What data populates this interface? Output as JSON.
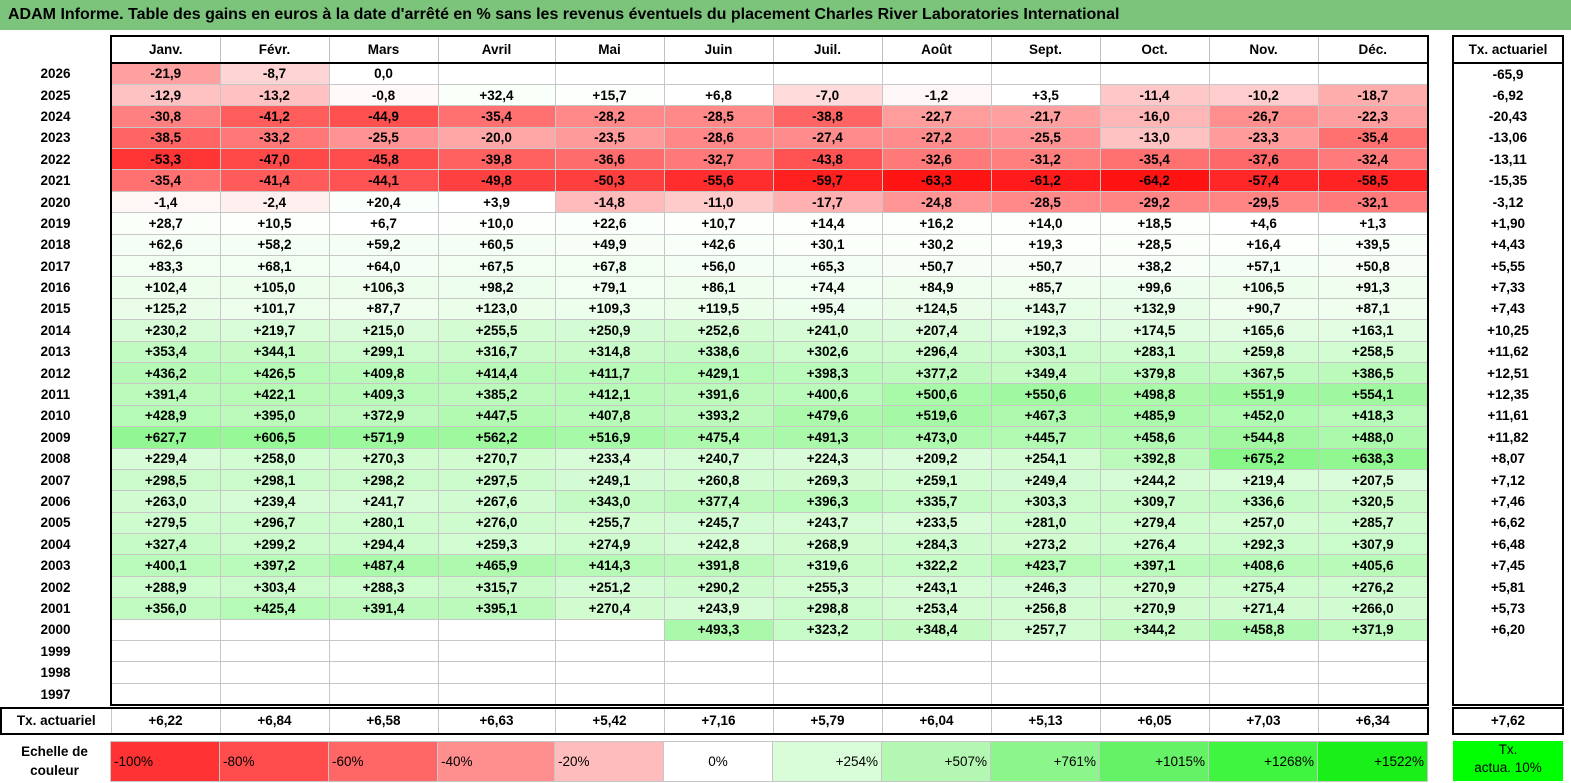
{
  "title": "ADAM Informe. Table des gains en euros à la date d'arrêté en % sans les revenus éventuels du placement Charles River Laboratories International",
  "months": [
    "Janv.",
    "Févr.",
    "Mars",
    "Avril",
    "Mai",
    "Juin",
    "Juil.",
    "Août",
    "Sept.",
    "Oct.",
    "Nov.",
    "Déc."
  ],
  "rate_header": "Tx. actuariel",
  "rows": [
    {
      "year": "2026",
      "values": [
        "-21,9",
        "-8,7",
        "0,0",
        "",
        "",
        "",
        "",
        "",
        "",
        "",
        "",
        ""
      ],
      "rate": "-65,9"
    },
    {
      "year": "2025",
      "values": [
        "-12,9",
        "-13,2",
        "-0,8",
        "+32,4",
        "+15,7",
        "+6,8",
        "-7,0",
        "-1,2",
        "+3,5",
        "-11,4",
        "-10,2",
        "-18,7"
      ],
      "rate": "-6,92"
    },
    {
      "year": "2024",
      "values": [
        "-30,8",
        "-41,2",
        "-44,9",
        "-35,4",
        "-28,2",
        "-28,5",
        "-38,8",
        "-22,7",
        "-21,7",
        "-16,0",
        "-26,7",
        "-22,3"
      ],
      "rate": "-20,43"
    },
    {
      "year": "2023",
      "values": [
        "-38,5",
        "-33,2",
        "-25,5",
        "-20,0",
        "-23,5",
        "-28,6",
        "-27,4",
        "-27,2",
        "-25,5",
        "-13,0",
        "-23,3",
        "-35,4"
      ],
      "rate": "-13,06"
    },
    {
      "year": "2022",
      "values": [
        "-53,3",
        "-47,0",
        "-45,8",
        "-39,8",
        "-36,6",
        "-32,7",
        "-43,8",
        "-32,6",
        "-31,2",
        "-35,4",
        "-37,6",
        "-32,4"
      ],
      "rate": "-13,11"
    },
    {
      "year": "2021",
      "values": [
        "-35,4",
        "-41,4",
        "-44,1",
        "-49,8",
        "-50,3",
        "-55,6",
        "-59,7",
        "-63,3",
        "-61,2",
        "-64,2",
        "-57,4",
        "-58,5"
      ],
      "rate": "-15,35"
    },
    {
      "year": "2020",
      "values": [
        "-1,4",
        "-2,4",
        "+20,4",
        "+3,9",
        "-14,8",
        "-11,0",
        "-17,7",
        "-24,8",
        "-28,5",
        "-29,2",
        "-29,5",
        "-32,1"
      ],
      "rate": "-3,12"
    },
    {
      "year": "2019",
      "values": [
        "+28,7",
        "+10,5",
        "+6,7",
        "+10,0",
        "+22,6",
        "+10,7",
        "+14,4",
        "+16,2",
        "+14,0",
        "+18,5",
        "+4,6",
        "+1,3"
      ],
      "rate": "+1,90"
    },
    {
      "year": "2018",
      "values": [
        "+62,6",
        "+58,2",
        "+59,2",
        "+60,5",
        "+49,9",
        "+42,6",
        "+30,1",
        "+30,2",
        "+19,3",
        "+28,5",
        "+16,4",
        "+39,5"
      ],
      "rate": "+4,43"
    },
    {
      "year": "2017",
      "values": [
        "+83,3",
        "+68,1",
        "+64,0",
        "+67,5",
        "+67,8",
        "+56,0",
        "+65,3",
        "+50,7",
        "+50,7",
        "+38,2",
        "+57,1",
        "+50,8"
      ],
      "rate": "+5,55"
    },
    {
      "year": "2016",
      "values": [
        "+102,4",
        "+105,0",
        "+106,3",
        "+98,2",
        "+79,1",
        "+86,1",
        "+74,4",
        "+84,9",
        "+85,7",
        "+99,6",
        "+106,5",
        "+91,3"
      ],
      "rate": "+7,33"
    },
    {
      "year": "2015",
      "values": [
        "+125,2",
        "+101,7",
        "+87,7",
        "+123,0",
        "+109,3",
        "+119,5",
        "+95,4",
        "+124,5",
        "+143,7",
        "+132,9",
        "+90,7",
        "+87,1"
      ],
      "rate": "+7,43"
    },
    {
      "year": "2014",
      "values": [
        "+230,2",
        "+219,7",
        "+215,0",
        "+255,5",
        "+250,9",
        "+252,6",
        "+241,0",
        "+207,4",
        "+192,3",
        "+174,5",
        "+165,6",
        "+163,1"
      ],
      "rate": "+10,25"
    },
    {
      "year": "2013",
      "values": [
        "+353,4",
        "+344,1",
        "+299,1",
        "+316,7",
        "+314,8",
        "+338,6",
        "+302,6",
        "+296,4",
        "+303,1",
        "+283,1",
        "+259,8",
        "+258,5"
      ],
      "rate": "+11,62"
    },
    {
      "year": "2012",
      "values": [
        "+436,2",
        "+426,5",
        "+409,8",
        "+414,4",
        "+411,7",
        "+429,1",
        "+398,3",
        "+377,2",
        "+349,4",
        "+379,8",
        "+367,5",
        "+386,5"
      ],
      "rate": "+12,51"
    },
    {
      "year": "2011",
      "values": [
        "+391,4",
        "+422,1",
        "+409,3",
        "+385,2",
        "+412,1",
        "+391,6",
        "+400,6",
        "+500,6",
        "+550,6",
        "+498,8",
        "+551,9",
        "+554,1"
      ],
      "rate": "+12,35"
    },
    {
      "year": "2010",
      "values": [
        "+428,9",
        "+395,0",
        "+372,9",
        "+447,5",
        "+407,8",
        "+393,2",
        "+479,6",
        "+519,6",
        "+467,3",
        "+485,9",
        "+452,0",
        "+418,3"
      ],
      "rate": "+11,61"
    },
    {
      "year": "2009",
      "values": [
        "+627,7",
        "+606,5",
        "+571,9",
        "+562,2",
        "+516,9",
        "+475,4",
        "+491,3",
        "+473,0",
        "+445,7",
        "+458,6",
        "+544,8",
        "+488,0"
      ],
      "rate": "+11,82"
    },
    {
      "year": "2008",
      "values": [
        "+229,4",
        "+258,0",
        "+270,3",
        "+270,7",
        "+233,4",
        "+240,7",
        "+224,3",
        "+209,2",
        "+254,1",
        "+392,8",
        "+675,2",
        "+638,3"
      ],
      "rate": "+8,07"
    },
    {
      "year": "2007",
      "values": [
        "+298,5",
        "+298,1",
        "+298,2",
        "+297,5",
        "+249,1",
        "+260,8",
        "+269,3",
        "+259,1",
        "+249,4",
        "+244,2",
        "+219,4",
        "+207,5"
      ],
      "rate": "+7,12"
    },
    {
      "year": "2006",
      "values": [
        "+263,0",
        "+239,4",
        "+241,7",
        "+267,6",
        "+343,0",
        "+377,4",
        "+396,3",
        "+335,7",
        "+303,3",
        "+309,7",
        "+336,6",
        "+320,5"
      ],
      "rate": "+7,46"
    },
    {
      "year": "2005",
      "values": [
        "+279,5",
        "+296,7",
        "+280,1",
        "+276,0",
        "+255,7",
        "+245,7",
        "+243,7",
        "+233,5",
        "+281,0",
        "+279,4",
        "+257,0",
        "+285,7"
      ],
      "rate": "+6,62"
    },
    {
      "year": "2004",
      "values": [
        "+327,4",
        "+299,2",
        "+294,4",
        "+259,3",
        "+274,9",
        "+242,8",
        "+268,9",
        "+284,3",
        "+273,2",
        "+276,4",
        "+292,3",
        "+307,9"
      ],
      "rate": "+6,48"
    },
    {
      "year": "2003",
      "values": [
        "+400,1",
        "+397,2",
        "+487,4",
        "+465,9",
        "+414,3",
        "+391,8",
        "+319,6",
        "+322,2",
        "+423,7",
        "+397,1",
        "+408,6",
        "+405,6"
      ],
      "rate": "+7,45"
    },
    {
      "year": "2002",
      "values": [
        "+288,9",
        "+303,4",
        "+288,3",
        "+315,7",
        "+251,2",
        "+290,2",
        "+255,3",
        "+243,1",
        "+246,3",
        "+270,9",
        "+275,4",
        "+276,2"
      ],
      "rate": "+5,81"
    },
    {
      "year": "2001",
      "values": [
        "+356,0",
        "+425,4",
        "+391,4",
        "+395,1",
        "+270,4",
        "+243,9",
        "+298,8",
        "+253,4",
        "+256,8",
        "+270,9",
        "+271,4",
        "+266,0"
      ],
      "rate": "+5,73"
    },
    {
      "year": "2000",
      "values": [
        "",
        "",
        "",
        "",
        "",
        "+493,3",
        "+323,2",
        "+348,4",
        "+257,7",
        "+344,2",
        "+458,8",
        "+371,9"
      ],
      "rate": "+6,20"
    },
    {
      "year": "1999",
      "values": [
        "",
        "",
        "",
        "",
        "",
        "",
        "",
        "",
        "",
        "",
        "",
        ""
      ],
      "rate": ""
    },
    {
      "year": "1998",
      "values": [
        "",
        "",
        "",
        "",
        "",
        "",
        "",
        "",
        "",
        "",
        "",
        ""
      ],
      "rate": ""
    },
    {
      "year": "1997",
      "values": [
        "",
        "",
        "",
        "",
        "",
        "",
        "",
        "",
        "",
        "",
        "",
        ""
      ],
      "rate": ""
    }
  ],
  "tx_row": {
    "label": "Tx. actuariel",
    "values": [
      "+6,22",
      "+6,84",
      "+6,58",
      "+6,63",
      "+5,42",
      "+7,16",
      "+5,79",
      "+6,04",
      "+5,13",
      "+6,05",
      "+7,03",
      "+6,34"
    ],
    "rate": "+7,62"
  },
  "scale": {
    "label_line1": "Echelle de",
    "label_line2": "couleur",
    "items": [
      {
        "text": "-100%",
        "color": "#ff3333"
      },
      {
        "text": "-80%",
        "color": "#ff4d4d"
      },
      {
        "text": "-60%",
        "color": "#ff6666"
      },
      {
        "text": "-40%",
        "color": "#ff8f8f"
      },
      {
        "text": "-20%",
        "color": "#ffbcbc"
      },
      {
        "text": "0%",
        "color": "#ffffff"
      },
      {
        "text": "+254%",
        "color": "#d9fcd9"
      },
      {
        "text": "+507%",
        "color": "#b3f7b3"
      },
      {
        "text": "+761%",
        "color": "#8cf58c"
      },
      {
        "text": "+1015%",
        "color": "#66f266"
      },
      {
        "text": "+1268%",
        "color": "#3ff53f"
      },
      {
        "text": "+1522%",
        "color": "#1aef1a"
      }
    ],
    "tx_line1": "Tx.",
    "tx_line2": "actua. 10%",
    "tx_color": "#00ff00"
  }
}
